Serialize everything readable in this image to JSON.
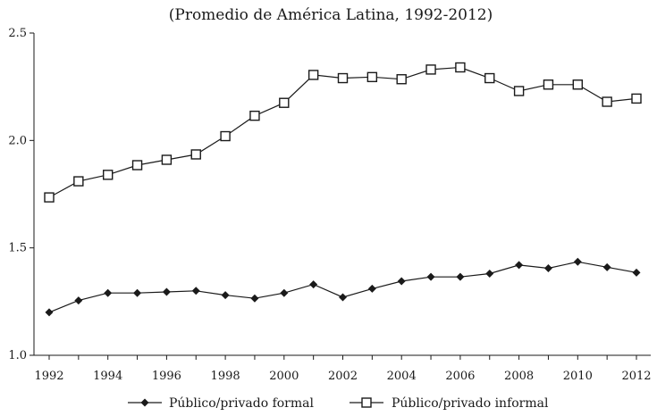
{
  "chart_data": {
    "type": "line",
    "title": "(Promedio de América Latina, 1992-2012)",
    "xlabel": "",
    "ylabel": "",
    "x": [
      1992,
      1993,
      1994,
      1995,
      1996,
      1997,
      1998,
      1999,
      2000,
      2001,
      2002,
      2003,
      2004,
      2005,
      2006,
      2007,
      2008,
      2009,
      2010,
      2011,
      2012
    ],
    "xticks": [
      "1992",
      "1994",
      "1996",
      "1998",
      "2000",
      "2002",
      "2004",
      "2006",
      "2008",
      "2010",
      "2012"
    ],
    "yticks": [
      "1.0",
      "1.5",
      "2.0",
      "2.5"
    ],
    "ylim": [
      1.0,
      2.5
    ],
    "xlim": [
      1992,
      2012
    ],
    "grid": false,
    "legend_position": "bottom",
    "series": [
      {
        "name": "Público/privado formal",
        "marker": "diamond",
        "values": [
          1.2,
          1.255,
          1.29,
          1.29,
          1.295,
          1.3,
          1.28,
          1.265,
          1.29,
          1.33,
          1.27,
          1.31,
          1.345,
          1.365,
          1.365,
          1.38,
          1.42,
          1.405,
          1.435,
          1.41,
          1.385
        ]
      },
      {
        "name": "Público/privado informal",
        "marker": "square",
        "values": [
          1.735,
          1.81,
          1.84,
          1.885,
          1.91,
          1.935,
          2.02,
          2.115,
          2.175,
          2.305,
          2.29,
          2.295,
          2.285,
          2.33,
          2.34,
          2.29,
          2.23,
          2.26,
          2.26,
          2.18,
          2.195
        ]
      }
    ]
  }
}
